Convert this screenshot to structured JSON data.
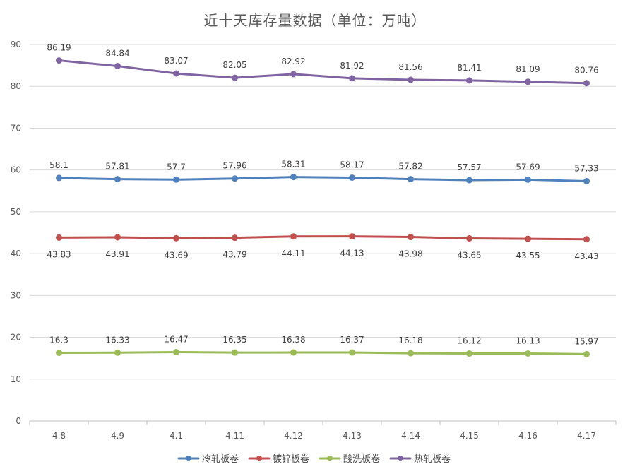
{
  "chart_data": {
    "type": "line",
    "title": "近十天库存量数据（单位：万吨）",
    "categories": [
      "4.8",
      "4.9",
      "4.1",
      "4.11",
      "4.12",
      "4.13",
      "4.14",
      "4.15",
      "4.16",
      "4.17"
    ],
    "ylim": [
      0,
      90
    ],
    "yticks": [
      0,
      10,
      20,
      30,
      40,
      50,
      60,
      70,
      80,
      90
    ],
    "grid": true,
    "legend_position": "bottom",
    "series": [
      {
        "name": "冷轧板卷",
        "color": "#4f81bd",
        "label_position": "above",
        "values": [
          58.1,
          57.81,
          57.7,
          57.96,
          58.31,
          58.17,
          57.82,
          57.57,
          57.69,
          57.33
        ]
      },
      {
        "name": "镀锌板卷",
        "color": "#c0504d",
        "label_position": "below",
        "values": [
          43.83,
          43.91,
          43.69,
          43.79,
          44.11,
          44.13,
          43.98,
          43.65,
          43.55,
          43.43
        ]
      },
      {
        "name": "酸洗板卷",
        "color": "#9bbb59",
        "label_position": "above",
        "values": [
          16.3,
          16.33,
          16.47,
          16.35,
          16.38,
          16.37,
          16.18,
          16.12,
          16.13,
          15.97
        ]
      },
      {
        "name": "热轧板卷",
        "color": "#8064a2",
        "label_position": "above",
        "values": [
          86.19,
          84.84,
          83.07,
          82.05,
          82.92,
          81.92,
          81.56,
          81.41,
          81.09,
          80.76
        ]
      }
    ]
  }
}
